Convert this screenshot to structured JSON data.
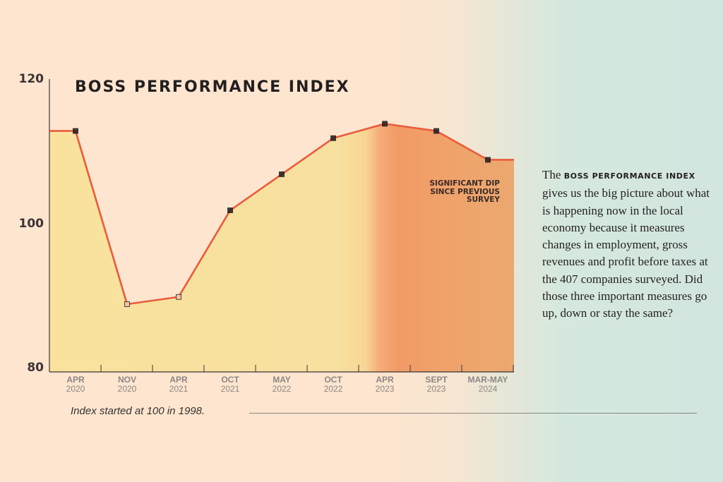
{
  "title": "BOSS PERFORMANCE INDEX",
  "annotation": "SIGNIFICANT DIP SINCE PREVIOUS SURVEY",
  "footnote": "Index started at 100 in 1998.",
  "description": {
    "prefix": "The",
    "brand": "BOSS PERFORMANCE INDEX",
    "text": "gives us the big picture about what is happening now in the local economy because it measures changes in employment, gross revenues and profit before taxes at the 407 companies surveyed. Did those three important measures go up, down or stay the same?"
  },
  "colors": {
    "line": "#ea5b3c",
    "area_light": "#f8e29d",
    "area_dark": "#f39865",
    "marker": "#231f20"
  },
  "chart_data": {
    "type": "line",
    "title": "BOSS PERFORMANCE INDEX",
    "categories": [
      {
        "month": "APR",
        "year": "2020"
      },
      {
        "month": "NOV",
        "year": "2020"
      },
      {
        "month": "APR",
        "year": "2021"
      },
      {
        "month": "OCT",
        "year": "2021"
      },
      {
        "month": "MAY",
        "year": "2022"
      },
      {
        "month": "OCT",
        "year": "2022"
      },
      {
        "month": "APR",
        "year": "2023"
      },
      {
        "month": "SEPT",
        "year": "2023"
      },
      {
        "month": "MAR-MAY",
        "year": "2024"
      }
    ],
    "values": [
      113,
      89,
      90,
      102,
      107,
      112,
      114,
      113,
      109
    ],
    "yticks": [
      120,
      100,
      80
    ],
    "ylim": [
      80,
      120
    ],
    "grid": false
  }
}
